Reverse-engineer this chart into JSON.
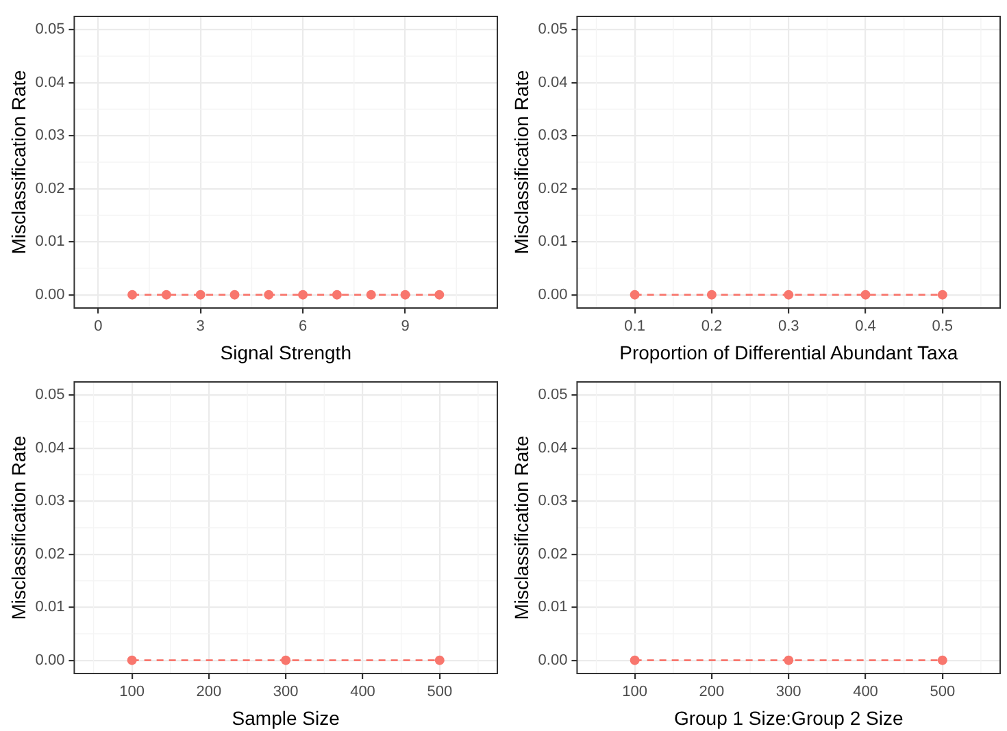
{
  "chart_data": [
    {
      "type": "line",
      "xlabel": "Signal Strength",
      "ylabel": "Misclassification Rate",
      "x": [
        1,
        2,
        3,
        4,
        5,
        6,
        7,
        8,
        9,
        10
      ],
      "series": [
        {
          "color": "#f8766d",
          "values": [
            0,
            0,
            0,
            0,
            0,
            0,
            0,
            0,
            0,
            0
          ]
        }
      ],
      "xlim": [
        -0.7,
        11.7
      ],
      "xticks": [
        0,
        3,
        6,
        9
      ],
      "ylim": [
        -0.0025,
        0.0525
      ],
      "yticks": [
        {
          "value": 0,
          "label": "0.00"
        },
        {
          "value": 0.01,
          "label": "0.01"
        },
        {
          "value": 0.02,
          "label": "0.02"
        },
        {
          "value": 0.03,
          "label": "0.03"
        },
        {
          "value": 0.04,
          "label": "0.04"
        },
        {
          "value": 0.05,
          "label": "0.05"
        }
      ],
      "grid": true,
      "legend": false,
      "marker": "circle",
      "line_style": "dashed"
    },
    {
      "type": "line",
      "xlabel": "Proportion of Differential Abundant Taxa",
      "ylabel": "Misclassification Rate",
      "x": [
        0.1,
        0.2,
        0.3,
        0.4,
        0.5
      ],
      "series": [
        {
          "color": "#f8766d",
          "values": [
            0,
            0,
            0,
            0,
            0
          ]
        }
      ],
      "xlim": [
        0.025,
        0.575
      ],
      "xticks": [
        0.1,
        0.2,
        0.3,
        0.4,
        0.5
      ],
      "ylim": [
        -0.0025,
        0.0525
      ],
      "yticks": [
        {
          "value": 0,
          "label": "0.00"
        },
        {
          "value": 0.01,
          "label": "0.01"
        },
        {
          "value": 0.02,
          "label": "0.02"
        },
        {
          "value": 0.03,
          "label": "0.03"
        },
        {
          "value": 0.04,
          "label": "0.04"
        },
        {
          "value": 0.05,
          "label": "0.05"
        }
      ],
      "grid": true,
      "legend": false,
      "marker": "circle",
      "line_style": "dashed"
    },
    {
      "type": "line",
      "xlabel": "Sample Size",
      "ylabel": "Misclassification Rate",
      "x": [
        100,
        300,
        500
      ],
      "series": [
        {
          "color": "#f8766d",
          "values": [
            0,
            0,
            0
          ]
        }
      ],
      "xlim": [
        25,
        575
      ],
      "xticks": [
        100,
        200,
        300,
        400,
        500
      ],
      "ylim": [
        -0.0025,
        0.0525
      ],
      "yticks": [
        {
          "value": 0,
          "label": "0.00"
        },
        {
          "value": 0.01,
          "label": "0.01"
        },
        {
          "value": 0.02,
          "label": "0.02"
        },
        {
          "value": 0.03,
          "label": "0.03"
        },
        {
          "value": 0.04,
          "label": "0.04"
        },
        {
          "value": 0.05,
          "label": "0.05"
        }
      ],
      "grid": true,
      "legend": false,
      "marker": "circle",
      "line_style": "dashed"
    },
    {
      "type": "line",
      "xlabel": "Group 1 Size:Group 2 Size",
      "ylabel": "Misclassification Rate",
      "x": [
        100,
        300,
        500
      ],
      "series": [
        {
          "color": "#f8766d",
          "values": [
            0,
            0,
            0
          ]
        }
      ],
      "xlim": [
        25,
        575
      ],
      "xticks": [
        100,
        200,
        300,
        400,
        500
      ],
      "ylim": [
        -0.0025,
        0.0525
      ],
      "yticks": [
        {
          "value": 0,
          "label": "0.00"
        },
        {
          "value": 0.01,
          "label": "0.01"
        },
        {
          "value": 0.02,
          "label": "0.02"
        },
        {
          "value": 0.03,
          "label": "0.03"
        },
        {
          "value": 0.04,
          "label": "0.04"
        },
        {
          "value": 0.05,
          "label": "0.05"
        }
      ],
      "grid": true,
      "legend": false,
      "marker": "circle",
      "line_style": "dashed"
    }
  ]
}
